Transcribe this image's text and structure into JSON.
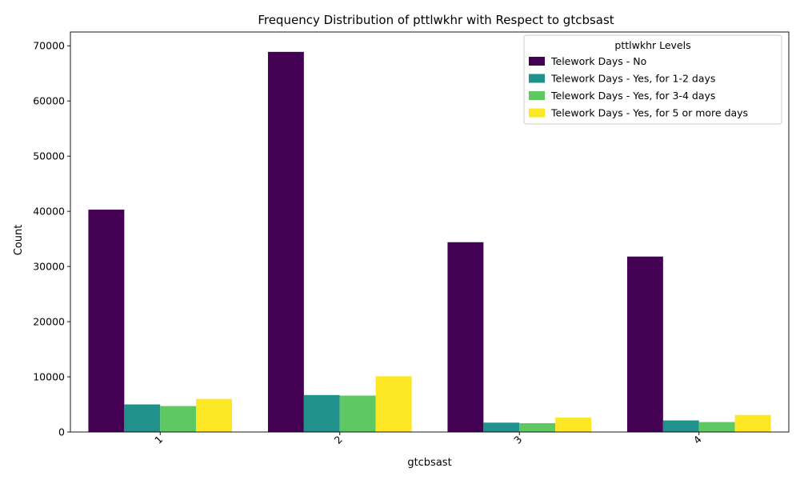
{
  "chart_data": {
    "type": "bar",
    "title": "Frequency Distribution of pttlwkhr with Respect to gtcbsast",
    "xlabel": "gtcbsast",
    "ylabel": "Count",
    "categories": [
      "1",
      "2",
      "3",
      "4"
    ],
    "ylim": [
      0,
      72500
    ],
    "yticks": [
      0,
      10000,
      20000,
      30000,
      40000,
      50000,
      60000,
      70000
    ],
    "grid": false,
    "legend": {
      "title": "pttlwkhr Levels",
      "placement": "top-right"
    },
    "series": [
      {
        "name": "Telework Days - No",
        "color": "#440154",
        "values": [
          40300,
          68900,
          34400,
          31800
        ]
      },
      {
        "name": "Telework Days - Yes, for 1-2 days",
        "color": "#21918c",
        "values": [
          5000,
          6700,
          1700,
          2100
        ]
      },
      {
        "name": "Telework Days - Yes, for 3-4 days",
        "color": "#5ec962",
        "values": [
          4700,
          6600,
          1600,
          1800
        ]
      },
      {
        "name": "Telework Days - Yes, for 5 or more days",
        "color": "#fde725",
        "values": [
          6000,
          10100,
          2600,
          3100
        ]
      }
    ]
  }
}
